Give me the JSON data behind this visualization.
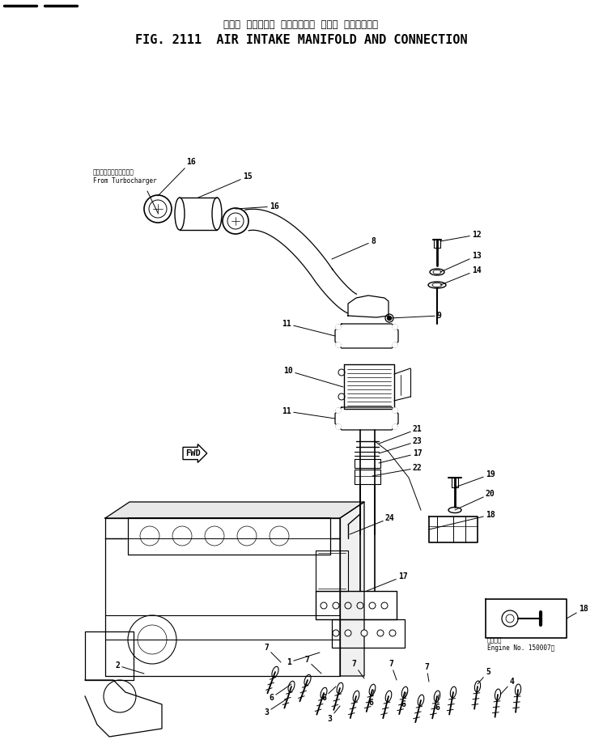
{
  "title_japanese": "エアー  インテーク  マニホールド  および  コネクション",
  "title_english": "FIG. 2111  AIR INTAKE MANIFOLD AND CONNECTION",
  "bg_color": "#ffffff",
  "line_color": "#000000",
  "fig_width": 7.45,
  "fig_height": 9.19,
  "dpi": 100,
  "turbo_label_jp": "ターボチャージャーから",
  "turbo_label_en": "From Turbocharger",
  "note_line1": "適用番号",
  "note_line2": "Engine No. 150007～"
}
